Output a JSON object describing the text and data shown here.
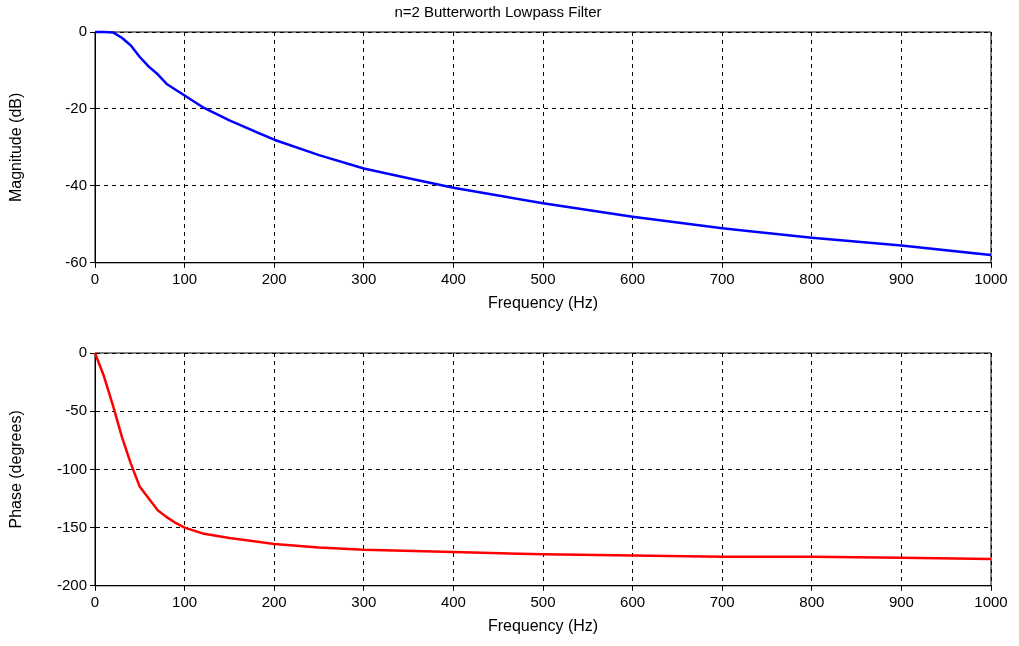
{
  "chart_data": [
    {
      "type": "line",
      "title": "n=2 Butterworth Lowpass Filter",
      "xlabel": "Frequency (Hz)",
      "ylabel": "Magnitude (dB)",
      "grid": true,
      "xlim": [
        0,
        1000
      ],
      "ylim": [
        -60,
        0
      ],
      "xticks": [
        0,
        100,
        200,
        300,
        400,
        500,
        600,
        700,
        800,
        900,
        1000
      ],
      "yticks": [
        -60,
        -40,
        -20,
        0
      ],
      "x": [
        0,
        10,
        20,
        30,
        40,
        50,
        60,
        70,
        80,
        90,
        100,
        120,
        150,
        200,
        250,
        300,
        350,
        400,
        450,
        500,
        600,
        700,
        800,
        900,
        1000
      ],
      "series": [
        {
          "color": "#0000ff",
          "values": [
            0,
            0,
            -0.1,
            -1.5,
            -3.5,
            -6.5,
            -9,
            -11,
            -13.5,
            -15,
            -16.5,
            -19.5,
            -23,
            -28,
            -32,
            -35.5,
            -38,
            -40.5,
            -42.5,
            -44.5,
            -48,
            -51,
            -53.5,
            -55.5,
            -58
          ]
        }
      ]
    },
    {
      "type": "line",
      "xlabel": "Frequency (Hz)",
      "ylabel": "Phase (degrees)",
      "grid": true,
      "xlim": [
        0,
        1000
      ],
      "ylim": [
        -200,
        0
      ],
      "xticks": [
        0,
        100,
        200,
        300,
        400,
        500,
        600,
        700,
        800,
        900,
        1000
      ],
      "yticks": [
        -200,
        -150,
        -100,
        -50,
        0
      ],
      "x": [
        0,
        10,
        20,
        30,
        40,
        50,
        60,
        70,
        80,
        90,
        100,
        120,
        150,
        200,
        250,
        300,
        400,
        500,
        600,
        700,
        800,
        900,
        1000
      ],
      "series": [
        {
          "color": "#ff0000",
          "values": [
            0,
            -20,
            -45,
            -72,
            -95,
            -115,
            -125,
            -135,
            -141,
            -146,
            -150,
            -155,
            -159,
            -164,
            -167,
            -169,
            -171,
            -173,
            -174,
            -175,
            -175,
            -176,
            -177
          ]
        }
      ]
    }
  ]
}
